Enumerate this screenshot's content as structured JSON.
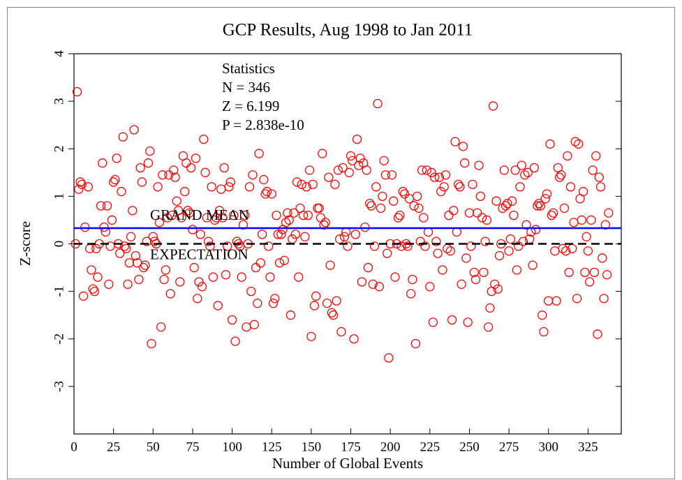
{
  "chart_data": {
    "type": "scatter",
    "title": "GCP Results, Aug 1998 to Jan 2011",
    "xlabel": "Number of Global Events",
    "ylabel": "Z-score",
    "stats": [
      "Statistics",
      "N = 346",
      "Z = 6.199",
      "P = 2.838e-10"
    ],
    "grand_mean": {
      "label": "GRAND MEAN",
      "value": 0.33,
      "color": "#0000ff"
    },
    "expectation": {
      "label": "EXPECTATION",
      "value": 0,
      "color": "#000000"
    },
    "color": "#ff0000",
    "xlim": [
      0,
      346
    ],
    "ylim": [
      -4,
      4
    ],
    "xticks": [
      0,
      25,
      50,
      75,
      100,
      125,
      150,
      175,
      200,
      225,
      250,
      275,
      300,
      325
    ],
    "yticks": [
      -3,
      -2,
      -1,
      0,
      1,
      2,
      3,
      4
    ],
    "x": [
      2,
      4,
      5,
      3,
      1,
      7,
      6,
      9,
      10,
      11,
      12,
      13,
      14,
      15,
      16,
      17,
      18,
      19,
      20,
      21,
      22,
      23,
      24,
      25,
      26,
      27,
      28,
      29,
      30,
      31,
      32,
      33,
      34,
      35,
      36,
      37,
      38,
      39,
      40,
      41,
      42,
      43,
      44,
      45,
      46,
      47,
      48,
      49,
      50,
      51,
      52,
      53,
      54,
      55,
      56,
      57,
      58,
      59,
      60,
      61,
      62,
      63,
      64,
      65,
      66,
      67,
      68,
      69,
      70,
      71,
      72,
      73,
      74,
      75,
      76,
      77,
      78,
      79,
      80,
      81,
      82,
      83,
      84,
      85,
      86,
      87,
      88,
      89,
      90,
      91,
      92,
      93,
      94,
      95,
      96,
      97,
      98,
      99,
      100,
      101,
      102,
      103,
      104,
      105,
      106,
      107,
      108,
      109,
      110,
      111,
      112,
      113,
      114,
      115,
      116,
      117,
      118,
      119,
      120,
      121,
      122,
      123,
      124,
      125,
      126,
      127,
      128,
      129,
      130,
      131,
      132,
      133,
      134,
      135,
      136,
      137,
      138,
      139,
      140,
      141,
      142,
      143,
      144,
      145,
      146,
      147,
      148,
      149,
      150,
      151,
      152,
      153,
      154,
      155,
      156,
      157,
      158,
      159,
      160,
      161,
      162,
      163,
      164,
      165,
      166,
      167,
      168,
      169,
      170,
      171,
      172,
      173,
      174,
      175,
      176,
      177,
      178,
      179,
      180,
      181,
      182,
      183,
      184,
      185,
      186,
      187,
      188,
      189,
      190,
      191,
      192,
      193,
      194,
      195,
      196,
      197,
      198,
      199,
      200,
      201,
      202,
      203,
      204,
      205,
      206,
      207,
      208,
      209,
      210,
      211,
      212,
      213,
      214,
      215,
      216,
      217,
      218,
      219,
      220,
      221,
      222,
      223,
      224,
      225,
      226,
      227,
      228,
      229,
      230,
      231,
      232,
      233,
      234,
      235,
      236,
      237,
      238,
      239,
      240,
      241,
      242,
      243,
      244,
      245,
      246,
      247,
      248,
      249,
      250,
      251,
      252,
      253,
      254,
      255,
      256,
      257,
      258,
      259,
      260,
      261,
      262,
      263,
      264,
      265,
      266,
      267,
      268,
      269,
      270,
      271,
      272,
      273,
      274,
      275,
      276,
      277,
      278,
      279,
      280,
      281,
      282,
      283,
      284,
      285,
      286,
      287,
      288,
      289,
      290,
      291,
      292,
      293,
      294,
      295,
      296,
      297,
      298,
      299,
      300,
      301,
      302,
      303,
      304,
      305,
      306,
      307,
      308,
      309,
      310,
      311,
      312,
      313,
      314,
      315,
      316,
      317,
      318,
      319,
      320,
      321,
      322,
      323,
      324,
      325,
      326,
      327,
      328,
      329,
      330,
      331,
      332,
      333,
      334,
      335,
      336,
      337,
      338
    ],
    "values": [
      3.2,
      1.3,
      1.25,
      1.15,
      0.0,
      0.35,
      -1.1,
      1.2,
      -0.1,
      -0.55,
      -0.95,
      -1.0,
      -0.1,
      -0.7,
      0.0,
      0.8,
      1.7,
      0.35,
      0.25,
      0.8,
      -0.85,
      -0.05,
      0.5,
      1.3,
      1.35,
      1.8,
      0.0,
      -0.2,
      1.1,
      2.25,
      -0.05,
      -0.1,
      -0.85,
      -0.4,
      0.15,
      0.7,
      2.4,
      -0.25,
      -0.4,
      -0.75,
      1.6,
      1.3,
      -0.5,
      -0.45,
      0.05,
      1.7,
      1.95,
      -2.1,
      0.15,
      0.05,
      0.0,
      1.2,
      0.45,
      -1.75,
      1.45,
      -0.75,
      -0.55,
      0.55,
      1.45,
      -1.05,
      0.6,
      1.55,
      1.4,
      0.9,
      0.7,
      -0.8,
      0.55,
      1.85,
      1.1,
      1.7,
      0.7,
      0.65,
      1.6,
      0.3,
      -0.5,
      1.8,
      -1.15,
      -0.8,
      0.2,
      -0.9,
      2.2,
      1.5,
      0.55,
      0.05,
      -0.05,
      1.2,
      -0.7,
      0.5,
      0.55,
      -1.3,
      0.7,
      1.15,
      0.55,
      1.6,
      -0.65,
      -0.05,
      1.2,
      1.3,
      -1.6,
      0.6,
      -2.05,
      0.05,
      0.0,
      -0.05,
      -0.7,
      0.4,
      0.6,
      -1.75,
      0.0,
      1.2,
      -1.0,
      1.45,
      -1.7,
      -0.5,
      -1.25,
      1.9,
      -0.4,
      0.2,
      1.35,
      1.05,
      1.1,
      -0.05,
      -0.7,
      1.05,
      -1.25,
      -1.15,
      0.6,
      0.2,
      -0.4,
      0.2,
      0.3,
      -0.35,
      0.45,
      0.65,
      0.5,
      -1.5,
      0.1,
      0.65,
      0.2,
      1.3,
      -0.7,
      0.75,
      1.25,
      0.6,
      0.15,
      1.2,
      0.6,
      1.55,
      -1.95,
      1.25,
      -1.3,
      -1.1,
      0.75,
      0.75,
      0.55,
      1.9,
      0.4,
      0.45,
      -1.25,
      1.4,
      -0.45,
      -1.45,
      -1.5,
      1.25,
      -1.2,
      1.55,
      0.1,
      -1.85,
      1.6,
      0.15,
      0.25,
      -0.05,
      1.5,
      1.85,
      1.75,
      -2.0,
      0.2,
      2.2,
      1.65,
      1.8,
      -0.8,
      1.7,
      0.35,
      1.55,
      -0.5,
      0.85,
      0.8,
      -0.85,
      -0.05,
      1.2,
      2.95,
      -0.9,
      0.75,
      1.0,
      1.75,
      1.45,
      -0.2,
      -2.4,
      0.0,
      1.45,
      0.9,
      -0.7,
      0.0,
      0.55,
      0.6,
      -0.05,
      1.1,
      1.05,
      0.0,
      -0.05,
      0.95,
      -1.05,
      -0.75,
      0.8,
      -2.1,
      1.0,
      0.75,
      0.05,
      1.55,
      0.55,
      -0.05,
      1.55,
      0.25,
      -0.9,
      1.5,
      -1.65,
      1.4,
      0.05,
      -0.2,
      1.4,
      1.1,
      -0.55,
      1.2,
      1.45,
      -0.1,
      0.6,
      -0.15,
      -1.6,
      0.7,
      2.15,
      0.25,
      1.25,
      1.2,
      -0.85,
      2.05,
      1.7,
      -0.3,
      -1.65,
      0.65,
      -0.05,
      1.25,
      -0.6,
      -0.75,
      0.65,
      1.65,
      1.0,
      0.55,
      -0.6,
      0.05,
      0.5,
      -1.75,
      -1.35,
      -1.0,
      2.9,
      -0.85,
      0.9,
      -0.95,
      -0.25,
      0.0,
      0.75,
      1.55,
      0.8,
      0.85,
      -0.15,
      0.1,
      0.9,
      0.6,
      1.55,
      -0.55,
      -0.05,
      1.2,
      1.65,
      0.05,
      1.45,
      0.4,
      1.5,
      0.1,
      0.25,
      -0.45,
      1.6,
      0.3,
      0.8,
      0.85,
      0.8,
      -1.5,
      -1.85,
      0.95,
      1.05,
      -1.2,
      2.1,
      0.6,
      0.65,
      -0.15,
      -1.2,
      1.6,
      1.4,
      1.45,
      -0.1,
      0.75,
      -0.15,
      1.85,
      -0.6,
      1.2,
      -0.1,
      0.45,
      2.15,
      -1.15,
      2.1,
      0.95,
      0.5,
      1.1,
      -0.6,
      0.15,
      -0.15,
      -0.8,
      0.5,
      1.55,
      -0.6,
      1.85,
      -1.9,
      1.4,
      1.2,
      -0.3,
      -1.15,
      0.4,
      -0.65,
      0.65
    ]
  }
}
